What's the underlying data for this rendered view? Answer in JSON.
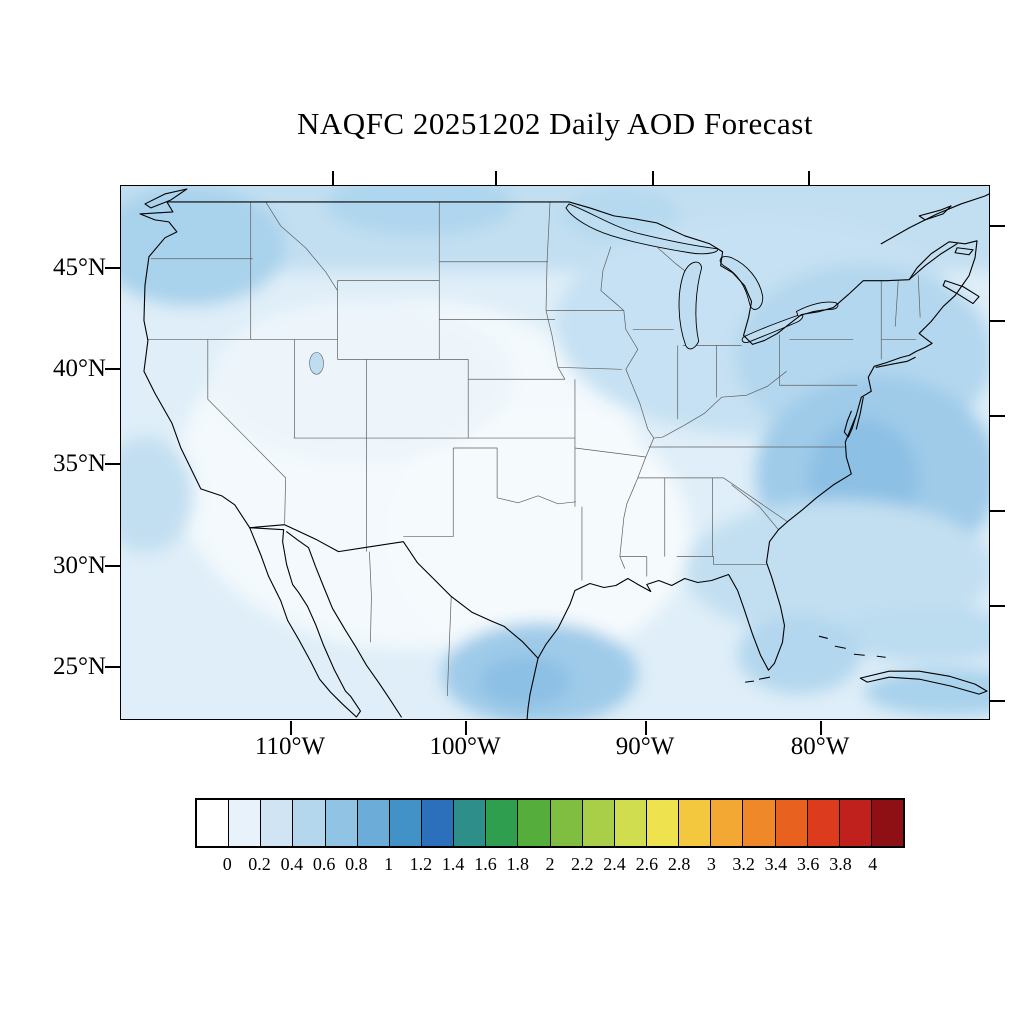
{
  "title": "NAQFC 20251202 Daily AOD Forecast",
  "map": {
    "y_axis_labels": [
      "45°N",
      "40°N",
      "35°N",
      "30°N",
      "25°N"
    ],
    "x_axis_labels": [
      "110°W",
      "100°W",
      "90°W",
      "80°W"
    ],
    "region": "Contiguous United States with state boundaries, southern Canada, northern Mexico"
  },
  "colorbar": {
    "variable": "AOD",
    "tick_labels": [
      "0",
      "0.2",
      "0.4",
      "0.6",
      "0.8",
      "1",
      "1.2",
      "1.4",
      "1.6",
      "1.8",
      "2",
      "2.2",
      "2.4",
      "2.6",
      "2.8",
      "3",
      "3.2",
      "3.4",
      "3.6",
      "3.8",
      "4"
    ],
    "colors": [
      "#FFFFFF",
      "#E7F2FA",
      "#D0E4F4",
      "#B5D7EE",
      "#90C3E4",
      "#6BADD8",
      "#4292C8",
      "#2C6FBA",
      "#2D8E8A",
      "#2F9E4F",
      "#55AE3C",
      "#7FBE41",
      "#A9CE47",
      "#CFDD4E",
      "#EFE24F",
      "#F4C83E",
      "#F2A833",
      "#EE8828",
      "#E8611F",
      "#DD3B1D",
      "#C0211C",
      "#8E1014"
    ]
  }
}
